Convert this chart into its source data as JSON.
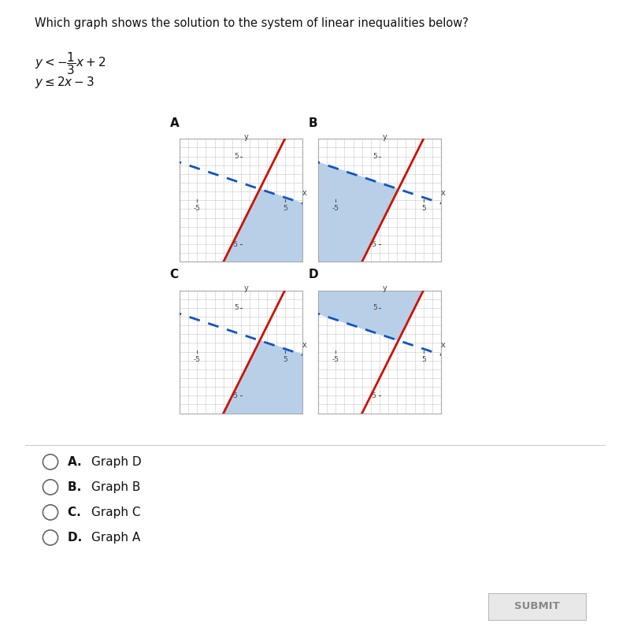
{
  "title_text": "Which graph shows the solution to the system of linear inequalities below?",
  "bg_color": "#ffffff",
  "grid_color": "#c8c8c8",
  "shade_color": "#b8cfe8",
  "red_line_color": "#cc1100",
  "blue_dash_color": "#1155bb",
  "axis_color": "#666666",
  "answer_options": [
    {
      "letter": "A",
      "text": "Graph D"
    },
    {
      "letter": "B",
      "text": "Graph B"
    },
    {
      "letter": "C",
      "text": "Graph C"
    },
    {
      "letter": "D",
      "text": "Graph A"
    }
  ],
  "graphs": [
    {
      "label": "A",
      "shade": "below_dashed_AND_above_red"
    },
    {
      "label": "B",
      "shade": "below_dashed_AND_above_red_full"
    },
    {
      "label": "C",
      "shade": "below_dashed_AND_below_red"
    },
    {
      "label": "D",
      "shade": "above_dashed_AND_above_red"
    }
  ]
}
